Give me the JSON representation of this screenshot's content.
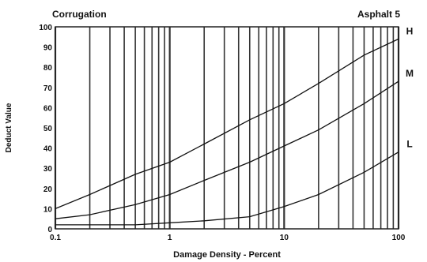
{
  "chart_data": {
    "type": "line",
    "title": "Corrugation",
    "subtitle": "Asphalt 5",
    "xlabel": "Damage Density - Percent",
    "ylabel": "Deduct Value",
    "x_scale": "log",
    "xlim": [
      0.1,
      100
    ],
    "ylim": [
      0,
      100
    ],
    "x_ticks": [
      {
        "value": 0.1,
        "label": "0.1"
      },
      {
        "value": 1,
        "label": "1"
      },
      {
        "value": 10,
        "label": "10"
      },
      {
        "value": 100,
        "label": "100"
      }
    ],
    "y_ticks": [
      {
        "value": 0,
        "label": "0"
      },
      {
        "value": 10,
        "label": "10"
      },
      {
        "value": 20,
        "label": "20"
      },
      {
        "value": 30,
        "label": "30"
      },
      {
        "value": 40,
        "label": "40"
      },
      {
        "value": 50,
        "label": "50"
      },
      {
        "value": 60,
        "label": "60"
      },
      {
        "value": 70,
        "label": "70"
      },
      {
        "value": 80,
        "label": "80"
      },
      {
        "value": 90,
        "label": "90"
      },
      {
        "value": 100,
        "label": "100"
      }
    ],
    "grid": true,
    "series": [
      {
        "name": "H",
        "x": [
          0.1,
          0.2,
          0.5,
          1,
          2,
          5,
          10,
          20,
          50,
          100
        ],
        "y": [
          10,
          17,
          27,
          33,
          42,
          54,
          62,
          72,
          86,
          94
        ]
      },
      {
        "name": "M",
        "x": [
          0.1,
          0.2,
          0.5,
          1,
          2,
          5,
          10,
          20,
          50,
          100
        ],
        "y": [
          5,
          7,
          12,
          17,
          24,
          33,
          41,
          49,
          62,
          73
        ]
      },
      {
        "name": "L",
        "x": [
          0.1,
          0.2,
          0.5,
          1,
          2,
          5,
          10,
          20,
          50,
          100
        ],
        "y": [
          2,
          2,
          2,
          3,
          4,
          6,
          11,
          17,
          28,
          38
        ]
      }
    ]
  }
}
